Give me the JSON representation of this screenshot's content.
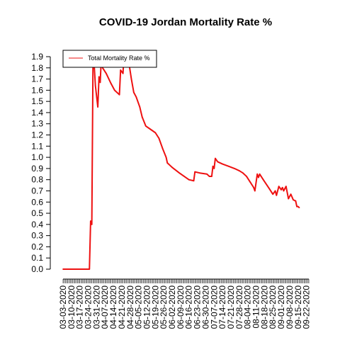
{
  "chart_data": {
    "type": "line",
    "title": "COVID-19 Jordan Mortality Rate %",
    "xlabel": "",
    "ylabel": "",
    "ylim": [
      0,
      1.9
    ],
    "yticks": [
      0.0,
      0.1,
      0.2,
      0.3,
      0.4,
      0.5,
      0.6,
      0.7,
      0.8,
      0.9,
      1.0,
      1.1,
      1.2,
      1.3,
      1.4,
      1.5,
      1.6,
      1.7,
      1.8,
      1.9
    ],
    "x_start": "03-03-2020",
    "x_end": "09-24-2020",
    "date_labels": [
      "03-03-2020",
      "03-10-2020",
      "03-17-2020",
      "03-24-2020",
      "03-31-2020",
      "04-07-2020",
      "04-14-2020",
      "04-21-2020",
      "04-28-2020",
      "05-05-2020",
      "05-12-2020",
      "05-19-2020",
      "05-26-2020",
      "06-02-2020",
      "06-09-2020",
      "06-16-2020",
      "06-23-2020",
      "06-30-2020",
      "07-07-2020",
      "07-14-2020",
      "07-21-2020",
      "07-28-2020",
      "08-04-2020",
      "08-11-2020",
      "08-18-2020",
      "08-25-2020",
      "09-01-2020",
      "09-08-2020",
      "09-15-2020",
      "09-22-2020"
    ],
    "legend": {
      "position": "top-left",
      "entries": [
        "Total Mortality Rate %"
      ]
    },
    "series": [
      {
        "name": "Total Mortality Rate %",
        "color": "#ee1111",
        "points": [
          [
            "03-03-2020",
            0.0
          ],
          [
            "03-25-2020",
            0.0
          ],
          [
            "03-26-2020",
            0.43
          ],
          [
            "03-27-2020",
            0.4
          ],
          [
            "03-28-2020",
            1.88
          ],
          [
            "03-29-2020",
            1.82
          ],
          [
            "03-30-2020",
            1.64
          ],
          [
            "04-01-2020",
            1.45
          ],
          [
            "04-02-2020",
            1.72
          ],
          [
            "04-03-2020",
            1.67
          ],
          [
            "04-04-2020",
            1.9
          ],
          [
            "04-05-2020",
            1.8
          ],
          [
            "04-08-2020",
            1.75
          ],
          [
            "04-12-2020",
            1.66
          ],
          [
            "04-15-2020",
            1.6
          ],
          [
            "04-19-2020",
            1.56
          ],
          [
            "04-20-2020",
            1.78
          ],
          [
            "04-22-2020",
            1.75
          ],
          [
            "04-23-2020",
            1.95
          ],
          [
            "04-25-2020",
            1.93
          ],
          [
            "04-27-2020",
            1.84
          ],
          [
            "04-29-2020",
            1.7
          ],
          [
            "05-01-2020",
            1.58
          ],
          [
            "05-03-2020",
            1.54
          ],
          [
            "05-06-2020",
            1.45
          ],
          [
            "05-08-2020",
            1.36
          ],
          [
            "05-11-2020",
            1.28
          ],
          [
            "05-15-2020",
            1.25
          ],
          [
            "05-19-2020",
            1.22
          ],
          [
            "05-22-2020",
            1.17
          ],
          [
            "05-25-2020",
            1.08
          ],
          [
            "05-28-2020",
            1.0
          ],
          [
            "05-29-2020",
            0.95
          ],
          [
            "06-02-2020",
            0.91
          ],
          [
            "06-08-2020",
            0.86
          ],
          [
            "06-12-2020",
            0.83
          ],
          [
            "06-16-2020",
            0.8
          ],
          [
            "06-20-2020",
            0.79
          ],
          [
            "06-21-2020",
            0.87
          ],
          [
            "06-25-2020",
            0.86
          ],
          [
            "07-01-2020",
            0.85
          ],
          [
            "07-03-2020",
            0.83
          ],
          [
            "07-05-2020",
            0.83
          ],
          [
            "07-06-2020",
            0.92
          ],
          [
            "07-07-2020",
            0.9
          ],
          [
            "07-08-2020",
            0.99
          ],
          [
            "07-10-2020",
            0.96
          ],
          [
            "07-14-2020",
            0.94
          ],
          [
            "07-19-2020",
            0.92
          ],
          [
            "07-24-2020",
            0.9
          ],
          [
            "07-28-2020",
            0.88
          ],
          [
            "07-31-2020",
            0.86
          ],
          [
            "08-03-2020",
            0.83
          ],
          [
            "08-06-2020",
            0.78
          ],
          [
            "08-09-2020",
            0.73
          ],
          [
            "08-10-2020",
            0.7
          ],
          [
            "08-12-2020",
            0.85
          ],
          [
            "08-13-2020",
            0.82
          ],
          [
            "08-14-2020",
            0.85
          ],
          [
            "08-17-2020",
            0.8
          ],
          [
            "08-22-2020",
            0.72
          ],
          [
            "08-25-2020",
            0.67
          ],
          [
            "08-27-2020",
            0.7
          ],
          [
            "08-28-2020",
            0.66
          ],
          [
            "08-30-2020",
            0.74
          ],
          [
            "09-01-2020",
            0.71
          ],
          [
            "09-02-2020",
            0.73
          ],
          [
            "09-03-2020",
            0.7
          ],
          [
            "09-05-2020",
            0.74
          ],
          [
            "09-07-2020",
            0.63
          ],
          [
            "09-09-2020",
            0.67
          ],
          [
            "09-11-2020",
            0.62
          ],
          [
            "09-13-2020",
            0.61
          ],
          [
            "09-14-2020",
            0.56
          ],
          [
            "09-15-2020",
            0.56
          ],
          [
            "09-16-2020",
            0.55
          ]
        ]
      }
    ]
  }
}
